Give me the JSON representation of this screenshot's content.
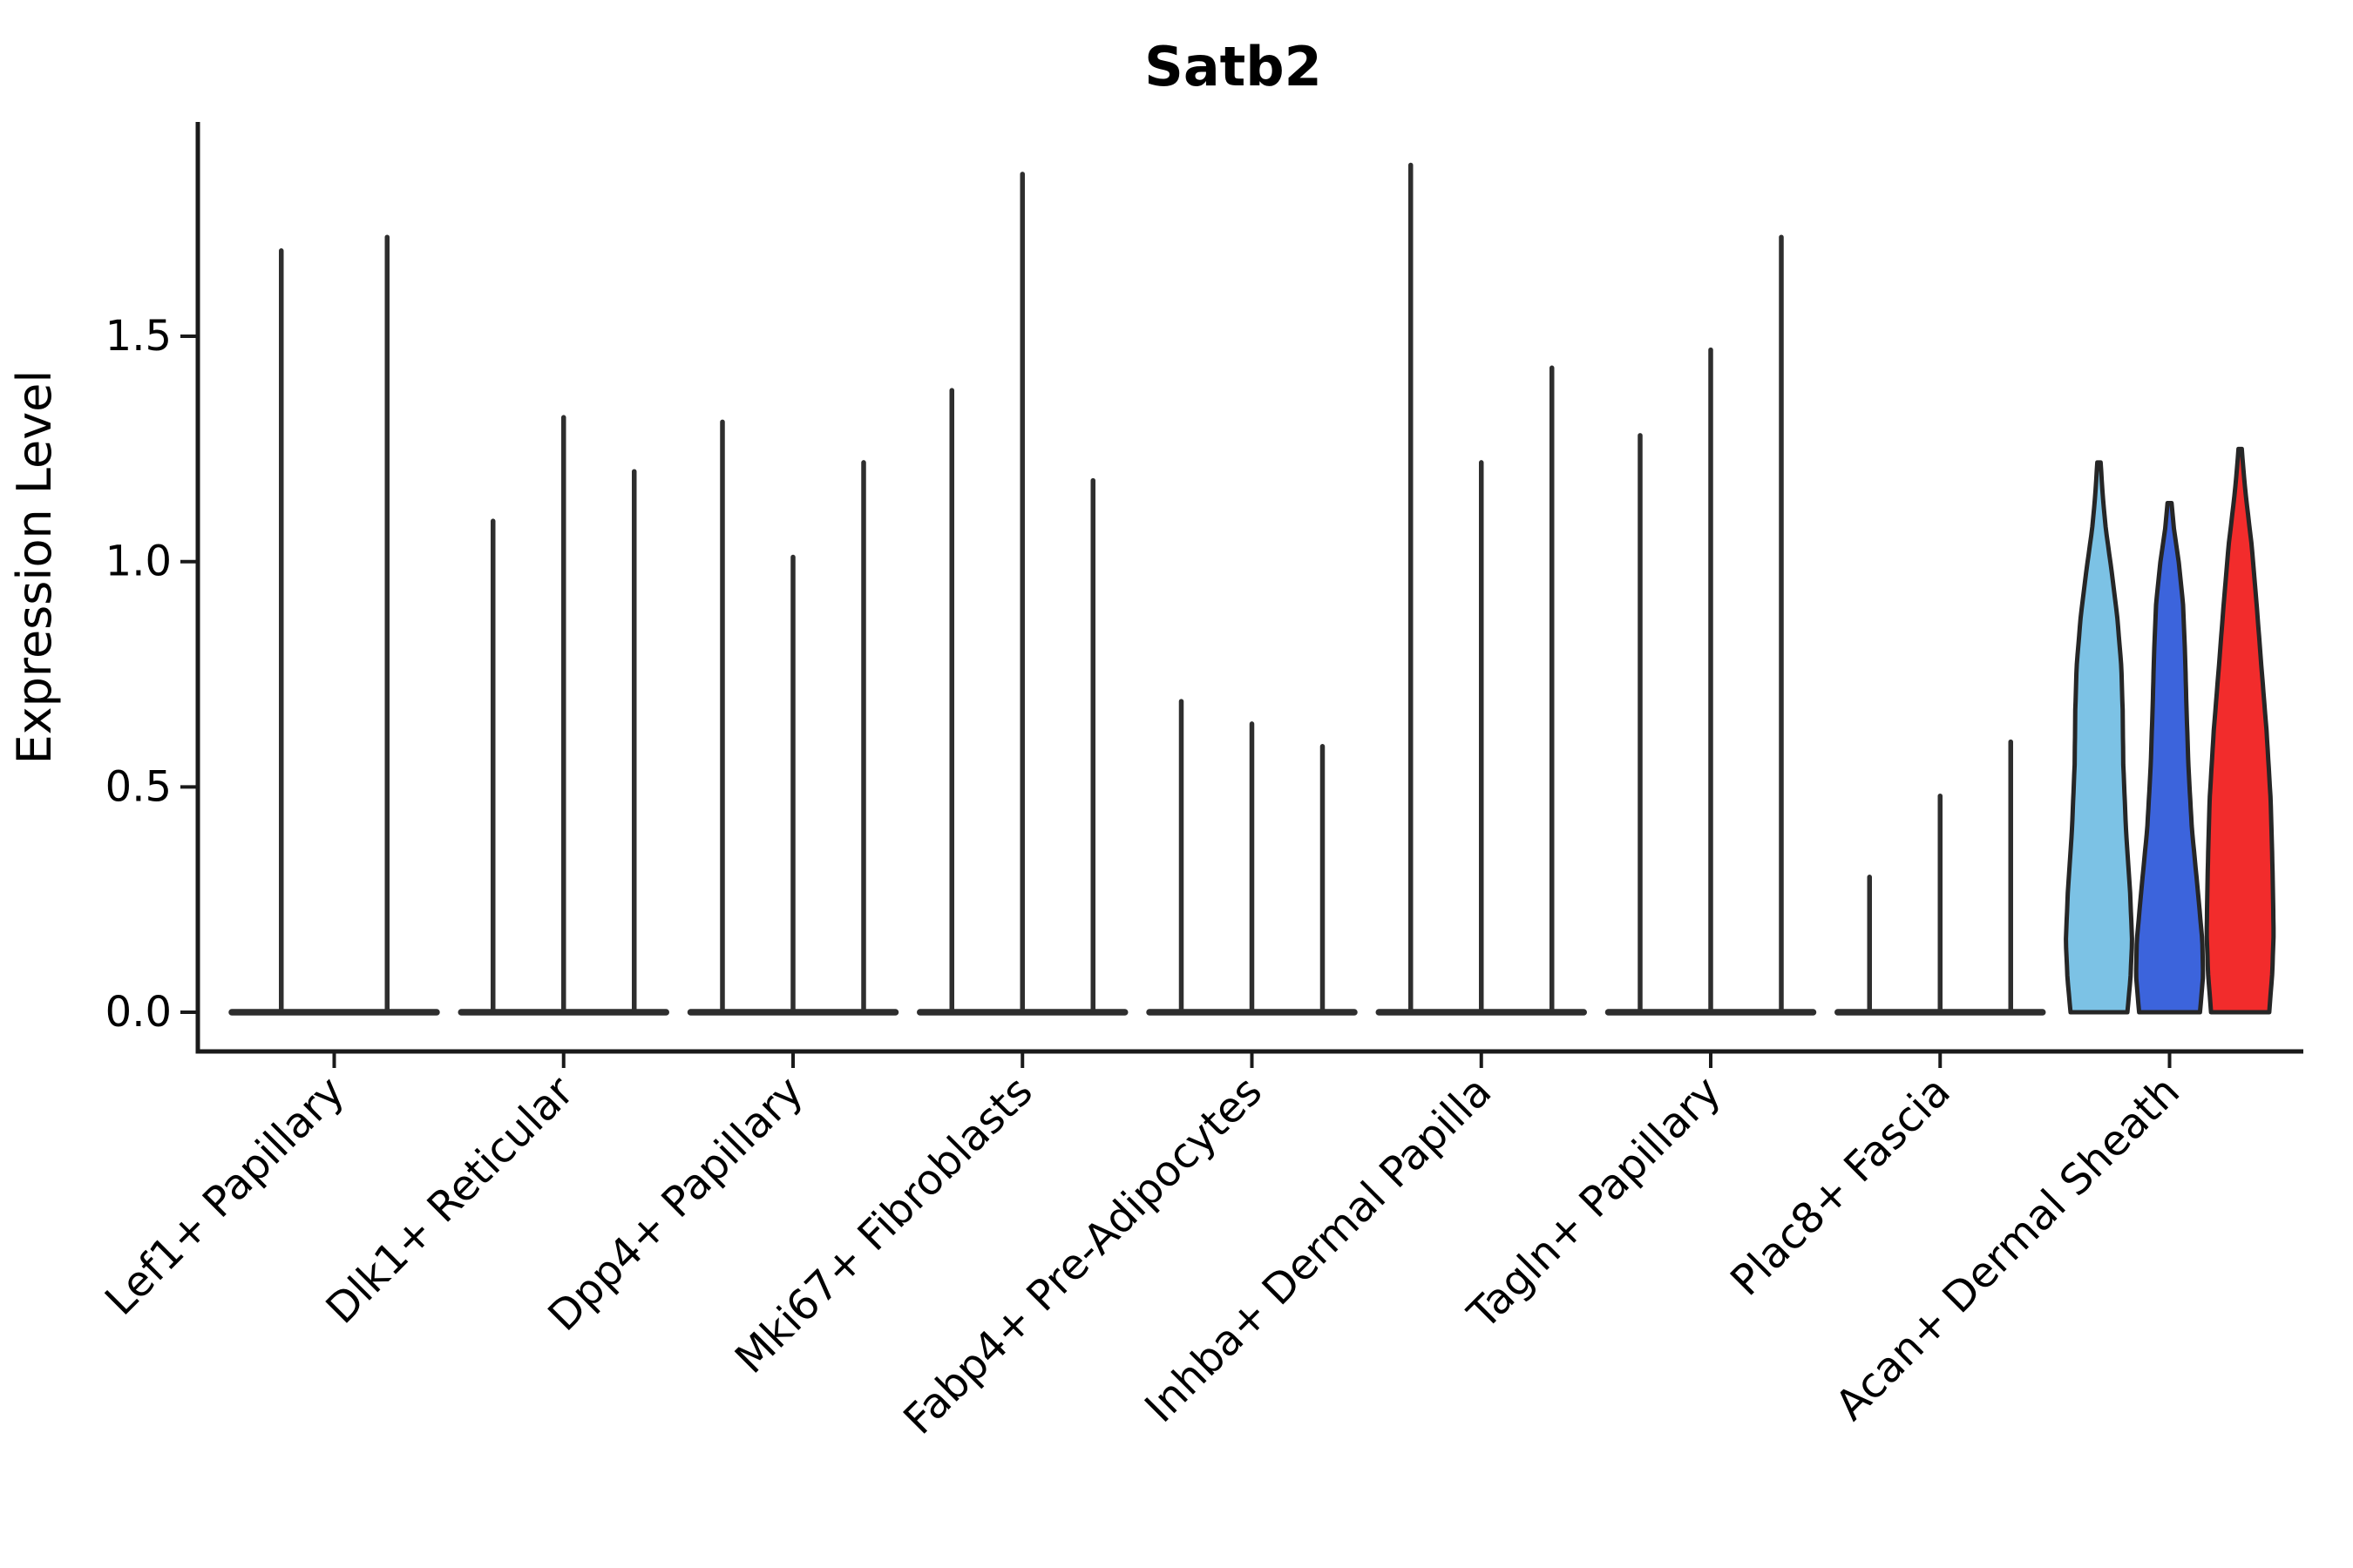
{
  "chart_data": {
    "type": "violin",
    "title": "Satb2",
    "xlabel": "",
    "ylabel": "Expression Level",
    "ylim": [
      0,
      1.98
    ],
    "ytick_labels": [
      "0.0",
      "0.5",
      "1.0",
      "1.5"
    ],
    "ytick_values": [
      0.0,
      0.5,
      1.0,
      1.5
    ],
    "grid": false,
    "legend": "none",
    "categories": [
      "Lef1+ Papillary",
      "Dlk1+ Reticular",
      "Dpp4+ Papillary",
      "Mki67+ Fibroblasts",
      "Fabp4+ Pre-Adipocytes",
      "Inhba+ Dermal Papilla",
      "Tagln+ Papillary",
      "Plac8+ Fascia",
      "Acan+ Dermal Sheath"
    ],
    "groups": [
      {
        "category": "Lef1+ Papillary",
        "violins": [
          {
            "split": 1,
            "max_expression": 1.69,
            "style": "needle"
          },
          {
            "split": 2,
            "max_expression": 1.72,
            "style": "needle"
          }
        ]
      },
      {
        "category": "Dlk1+ Reticular",
        "violins": [
          {
            "split": 1,
            "max_expression": 1.09,
            "style": "needle"
          },
          {
            "split": 2,
            "max_expression": 1.32,
            "style": "needle"
          },
          {
            "split": 3,
            "max_expression": 1.2,
            "style": "needle"
          }
        ]
      },
      {
        "category": "Dpp4+ Papillary",
        "violins": [
          {
            "split": 1,
            "max_expression": 1.31,
            "style": "needle"
          },
          {
            "split": 2,
            "max_expression": 1.01,
            "style": "needle"
          },
          {
            "split": 3,
            "max_expression": 1.22,
            "style": "needle"
          }
        ]
      },
      {
        "category": "Mki67+ Fibroblasts",
        "violins": [
          {
            "split": 1,
            "max_expression": 1.38,
            "style": "needle"
          },
          {
            "split": 2,
            "max_expression": 1.86,
            "style": "needle"
          },
          {
            "split": 3,
            "max_expression": 1.18,
            "style": "needle"
          }
        ]
      },
      {
        "category": "Fabp4+ Pre-Adipocytes",
        "violins": [
          {
            "split": 1,
            "max_expression": 0.69,
            "style": "needle"
          },
          {
            "split": 2,
            "max_expression": 0.64,
            "style": "needle"
          },
          {
            "split": 3,
            "max_expression": 0.59,
            "style": "needle"
          }
        ]
      },
      {
        "category": "Inhba+ Dermal Papilla",
        "violins": [
          {
            "split": 1,
            "max_expression": 1.88,
            "style": "needle"
          },
          {
            "split": 2,
            "max_expression": 1.22,
            "style": "needle"
          },
          {
            "split": 3,
            "max_expression": 1.43,
            "style": "needle"
          }
        ]
      },
      {
        "category": "Tagln+ Papillary",
        "violins": [
          {
            "split": 1,
            "max_expression": 1.28,
            "style": "needle"
          },
          {
            "split": 2,
            "max_expression": 1.47,
            "style": "needle"
          },
          {
            "split": 3,
            "max_expression": 1.72,
            "style": "needle"
          }
        ]
      },
      {
        "category": "Plac8+ Fascia",
        "violins": [
          {
            "split": 1,
            "max_expression": 0.3,
            "style": "needle"
          },
          {
            "split": 2,
            "max_expression": 0.48,
            "style": "needle"
          },
          {
            "split": 3,
            "max_expression": 0.6,
            "style": "needle"
          }
        ]
      },
      {
        "category": "Acan+ Dermal Sheath",
        "violins": [
          {
            "split": 1,
            "max_expression": 1.22,
            "style": "filled",
            "color": "#7CC2E5",
            "profile": "lightblue"
          },
          {
            "split": 2,
            "max_expression": 1.13,
            "style": "filled",
            "color": "#3C64DC",
            "profile": "blue"
          },
          {
            "split": 3,
            "max_expression": 1.25,
            "style": "filled",
            "color": "#F22C2C",
            "profile": "red"
          }
        ]
      }
    ],
    "profiles": {
      "lightblue": [
        [
          0,
          0.84
        ],
        [
          0.06,
          0.93
        ],
        [
          0.13,
          0.98
        ],
        [
          0.22,
          0.92
        ],
        [
          0.33,
          0.8
        ],
        [
          0.45,
          0.72
        ],
        [
          0.55,
          0.7
        ],
        [
          0.63,
          0.66
        ],
        [
          0.72,
          0.54
        ],
        [
          0.8,
          0.38
        ],
        [
          0.88,
          0.2
        ],
        [
          0.94,
          0.11
        ],
        [
          1,
          0.05
        ]
      ],
      "blue": [
        [
          0,
          0.9
        ],
        [
          0.07,
          0.99
        ],
        [
          0.14,
          0.97
        ],
        [
          0.25,
          0.82
        ],
        [
          0.36,
          0.66
        ],
        [
          0.48,
          0.56
        ],
        [
          0.6,
          0.5
        ],
        [
          0.7,
          0.46
        ],
        [
          0.8,
          0.4
        ],
        [
          0.88,
          0.28
        ],
        [
          0.95,
          0.13
        ],
        [
          1,
          0.06
        ]
      ],
      "red": [
        [
          0,
          0.86
        ],
        [
          0.07,
          0.95
        ],
        [
          0.14,
          0.99
        ],
        [
          0.25,
          0.96
        ],
        [
          0.38,
          0.9
        ],
        [
          0.5,
          0.78
        ],
        [
          0.62,
          0.62
        ],
        [
          0.73,
          0.48
        ],
        [
          0.83,
          0.34
        ],
        [
          0.91,
          0.18
        ],
        [
          0.96,
          0.1
        ],
        [
          1,
          0.05
        ]
      ]
    },
    "colors": {
      "needle": "#2e2e2e",
      "violin_outline": "#262626",
      "axis": "#1a1a1a",
      "text": "#000000",
      "background": "#ffffff"
    }
  }
}
